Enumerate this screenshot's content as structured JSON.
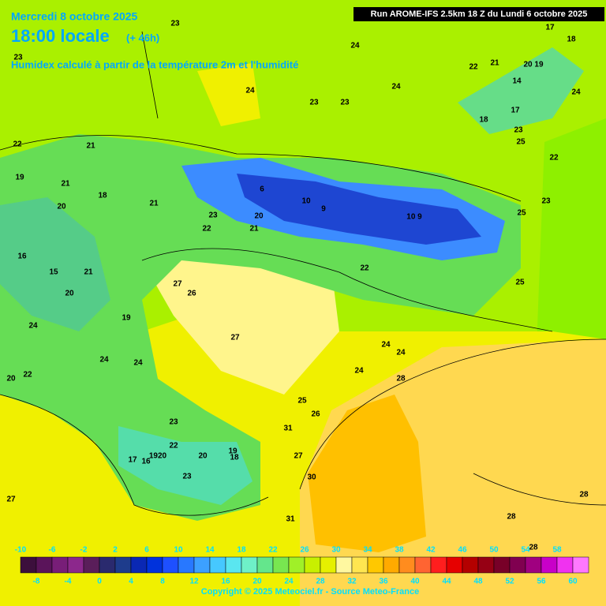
{
  "header": {
    "date": "Mercredi 8 octobre 2025",
    "time": "18:00 locale",
    "lead": "(+ 46h)",
    "subtitle": "Humidex calculé à partir de la température 2m et l'humidité",
    "run": "Run AROME-IFS 2.5km 18 Z du Lundi 6 octobre 2025"
  },
  "contour_labels": [
    "23",
    "24",
    "17",
    "18",
    "23",
    "22",
    "21",
    "20 19",
    "14",
    "24",
    "23",
    "23",
    "24",
    "24",
    "18",
    "17",
    "23",
    "25",
    "22",
    "21",
    "22",
    "19",
    "21",
    "18",
    "20",
    "21",
    "23",
    "20",
    "6",
    "10",
    "9",
    "10 9",
    "25",
    "23",
    "22",
    "21",
    "16",
    "15",
    "21",
    "20",
    "27",
    "26",
    "22",
    "25",
    "19",
    "24",
    "27",
    "24",
    "24",
    "24",
    "24",
    "24",
    "22",
    "20",
    "28",
    "25",
    "23",
    "26",
    "31",
    "22",
    "20",
    "19",
    "17",
    "16",
    "1920",
    "23",
    "18",
    "27",
    "28",
    "27",
    "30",
    "31",
    "28",
    "28"
  ],
  "legend": {
    "top_ticks": [
      -10,
      -6,
      -2,
      2,
      6,
      10,
      14,
      18,
      22,
      26,
      30,
      34,
      38,
      42,
      46,
      50,
      54,
      58
    ],
    "bottom_ticks": [
      -8,
      -4,
      0,
      4,
      8,
      12,
      16,
      20,
      24,
      28,
      32,
      36,
      40,
      44,
      48,
      52,
      56,
      60
    ],
    "colors": [
      "#3c0f3c",
      "#5a145a",
      "#781e78",
      "#8c288c",
      "#5a1e5a",
      "#2a2a6e",
      "#1e3c8c",
      "#0a28b4",
      "#0032dc",
      "#1e50ff",
      "#2878ff",
      "#3ca0ff",
      "#46c8ff",
      "#5ae6f0",
      "#6ef0c8",
      "#64e68c",
      "#78e650",
      "#a0f028",
      "#c8f000",
      "#e6f000",
      "#fff8a0",
      "#ffe650",
      "#ffc800",
      "#ffaa00",
      "#ff8c1e",
      "#ff6432",
      "#ff1e1e",
      "#e60000",
      "#b40000",
      "#960014",
      "#780028",
      "#800050",
      "#a00080",
      "#c800c8",
      "#f032f0",
      "#ff78ff"
    ]
  },
  "footer": {
    "copyright": "Copyright © 2025 Meteociel.fr - Source Meteo-France"
  }
}
